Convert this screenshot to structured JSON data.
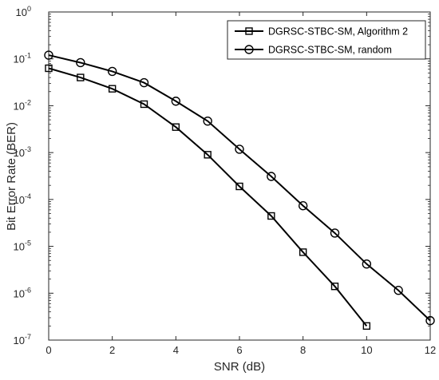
{
  "chart_data": {
    "type": "line",
    "title": "",
    "xlabel": "SNR (dB)",
    "ylabel": "Bit Error Rate (BER)",
    "xlim": [
      0,
      12
    ],
    "ylim": [
      1e-07,
      1
    ],
    "yscale": "log",
    "grid": false,
    "legend_position": "top-right",
    "x_ticks": [
      0,
      2,
      4,
      6,
      8,
      10,
      12
    ],
    "y_ticks": [
      {
        "base": "10",
        "exp": "-7"
      },
      {
        "base": "10",
        "exp": "-6"
      },
      {
        "base": "10",
        "exp": "-5"
      },
      {
        "base": "10",
        "exp": "-4"
      },
      {
        "base": "10",
        "exp": "-3"
      },
      {
        "base": "10",
        "exp": "-2"
      },
      {
        "base": "10",
        "exp": "-1"
      },
      {
        "base": "10",
        "exp": "0"
      }
    ],
    "line_color": "#000000",
    "series": [
      {
        "name": "DGRSC-STBC-SM, Algorithm 2",
        "marker": "square",
        "x": [
          0,
          1,
          2,
          3,
          4,
          5,
          6,
          7,
          8,
          9,
          10
        ],
        "y": [
          0.063,
          0.04,
          0.023,
          0.0108,
          0.0035,
          0.0009,
          0.00019,
          4.45e-05,
          7.5e-06,
          1.4e-06,
          2e-07
        ]
      },
      {
        "name": "DGRSC-STBC-SM, random",
        "marker": "circle",
        "x": [
          0,
          1,
          2,
          3,
          4,
          5,
          6,
          7,
          8,
          9,
          10,
          11,
          12
        ],
        "y": [
          0.12,
          0.083,
          0.054,
          0.031,
          0.0125,
          0.0047,
          0.00118,
          0.00031,
          7.35e-05,
          1.92e-05,
          4.2e-06,
          1.15e-06,
          2.6e-07
        ]
      }
    ]
  }
}
